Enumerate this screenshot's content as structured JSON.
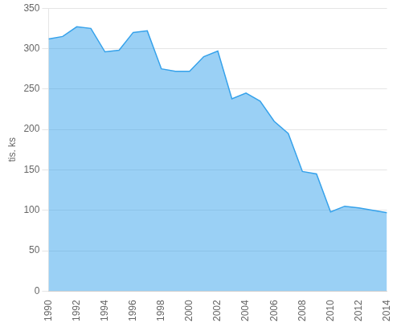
{
  "chart_data": {
    "type": "area",
    "x": [
      1990,
      1991,
      1992,
      1993,
      1994,
      1995,
      1996,
      1997,
      1998,
      1999,
      2000,
      2001,
      2002,
      2003,
      2004,
      2005,
      2006,
      2007,
      2008,
      2009,
      2010,
      2011,
      2012,
      2013,
      2014
    ],
    "values": [
      312,
      315,
      327,
      325,
      296,
      298,
      320,
      322,
      275,
      272,
      272,
      290,
      297,
      238,
      245,
      235,
      210,
      195,
      148,
      145,
      98,
      105,
      103,
      100,
      97
    ],
    "ylabel": "tis. ks",
    "xlim": [
      1990,
      2014
    ],
    "ylim": [
      0,
      350
    ],
    "xticks": [
      1990,
      1992,
      1994,
      1996,
      1998,
      2000,
      2002,
      2004,
      2006,
      2008,
      2010,
      2012,
      2014
    ],
    "yticks": [
      0,
      50,
      100,
      150,
      200,
      250,
      300,
      350
    ],
    "grid": "y"
  }
}
